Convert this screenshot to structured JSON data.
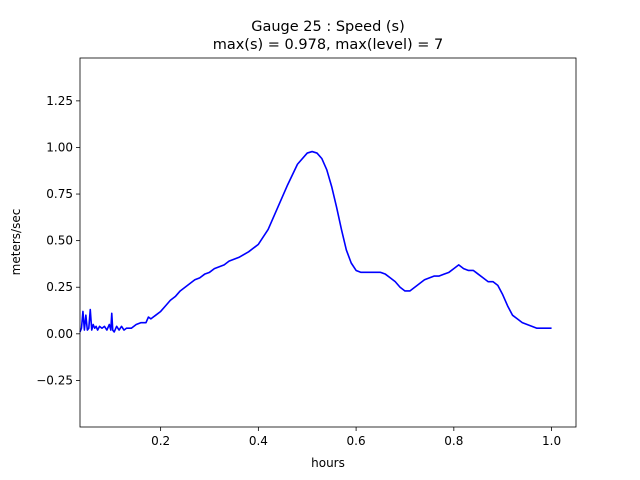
{
  "chart_data": {
    "type": "line",
    "title": "Gauge 25 : Speed (s)",
    "subtitle": "max(s) =   0.978,    max(level) = 7",
    "xlabel": "hours",
    "ylabel": "meters/sec",
    "xlim": [
      0.035,
      1.05
    ],
    "ylim": [
      -0.5,
      1.48
    ],
    "xticks": [
      0.2,
      0.4,
      0.6,
      0.8,
      1.0
    ],
    "xtick_labels": [
      "0.2",
      "0.4",
      "0.6",
      "0.8",
      "1.0"
    ],
    "yticks": [
      -0.25,
      0.0,
      0.25,
      0.5,
      0.75,
      1.0,
      1.25
    ],
    "ytick_labels": [
      "−0.25",
      "0.00",
      "0.25",
      "0.50",
      "0.75",
      "1.00",
      "1.25"
    ],
    "grid": false,
    "series": [
      {
        "color": "#0000ff",
        "x": [
          0.035,
          0.038,
          0.041,
          0.044,
          0.047,
          0.05,
          0.053,
          0.056,
          0.059,
          0.062,
          0.065,
          0.068,
          0.071,
          0.075,
          0.08,
          0.085,
          0.09,
          0.095,
          0.098,
          0.1,
          0.102,
          0.105,
          0.11,
          0.115,
          0.12,
          0.125,
          0.13,
          0.14,
          0.15,
          0.16,
          0.17,
          0.175,
          0.18,
          0.185,
          0.19,
          0.2,
          0.21,
          0.22,
          0.23,
          0.24,
          0.25,
          0.26,
          0.27,
          0.28,
          0.29,
          0.3,
          0.31,
          0.32,
          0.33,
          0.34,
          0.35,
          0.36,
          0.38,
          0.4,
          0.42,
          0.44,
          0.46,
          0.48,
          0.5,
          0.51,
          0.52,
          0.53,
          0.54,
          0.55,
          0.56,
          0.57,
          0.58,
          0.59,
          0.6,
          0.61,
          0.62,
          0.63,
          0.64,
          0.65,
          0.66,
          0.67,
          0.68,
          0.69,
          0.7,
          0.71,
          0.72,
          0.73,
          0.74,
          0.75,
          0.76,
          0.77,
          0.78,
          0.79,
          0.8,
          0.81,
          0.82,
          0.83,
          0.84,
          0.845,
          0.85,
          0.86,
          0.87,
          0.88,
          0.89,
          0.9,
          0.91,
          0.92,
          0.93,
          0.94,
          0.95,
          0.96,
          0.97,
          0.98,
          0.99,
          1.0
        ],
        "y": [
          0.01,
          0.03,
          0.12,
          0.02,
          0.1,
          0.02,
          0.03,
          0.13,
          0.02,
          0.05,
          0.03,
          0.04,
          0.02,
          0.04,
          0.03,
          0.04,
          0.02,
          0.05,
          0.02,
          0.11,
          0.02,
          0.01,
          0.04,
          0.02,
          0.04,
          0.02,
          0.03,
          0.03,
          0.05,
          0.06,
          0.06,
          0.09,
          0.08,
          0.09,
          0.1,
          0.12,
          0.15,
          0.18,
          0.2,
          0.23,
          0.25,
          0.27,
          0.29,
          0.3,
          0.32,
          0.33,
          0.35,
          0.36,
          0.37,
          0.39,
          0.4,
          0.41,
          0.44,
          0.48,
          0.56,
          0.68,
          0.8,
          0.91,
          0.97,
          0.978,
          0.97,
          0.94,
          0.88,
          0.79,
          0.68,
          0.56,
          0.45,
          0.38,
          0.34,
          0.33,
          0.33,
          0.33,
          0.33,
          0.33,
          0.32,
          0.3,
          0.28,
          0.25,
          0.23,
          0.23,
          0.25,
          0.27,
          0.29,
          0.3,
          0.31,
          0.31,
          0.32,
          0.33,
          0.35,
          0.37,
          0.35,
          0.34,
          0.34,
          0.33,
          0.32,
          0.3,
          0.28,
          0.28,
          0.26,
          0.21,
          0.15,
          0.1,
          0.08,
          0.06,
          0.05,
          0.04,
          0.03,
          0.03,
          0.03,
          0.03
        ]
      }
    ]
  }
}
